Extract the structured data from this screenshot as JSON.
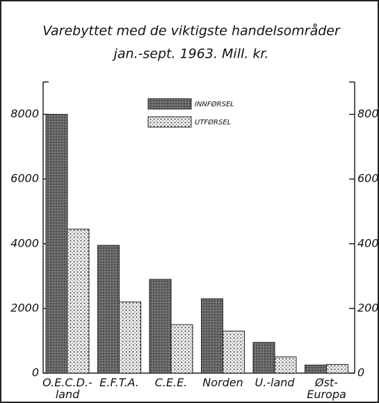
{
  "chart_data": {
    "type": "bar",
    "title": [
      "Varebyttet med de viktigste handelsområder",
      "jan.-sept. 1963. Mill. kr."
    ],
    "categories": [
      [
        "O.E.C.D.-",
        "land"
      ],
      [
        "E.F.T.A."
      ],
      [
        "C.E.E."
      ],
      [
        "Norden"
      ],
      [
        "U.-land"
      ],
      [
        "Øst-",
        "Europa"
      ]
    ],
    "series": [
      {
        "name": "INNFØRSEL",
        "color": "#6a6a6a",
        "values": [
          8000,
          3950,
          2900,
          2300,
          950,
          250
        ]
      },
      {
        "name": "UTFØRSEL",
        "color": "#e6e6e6",
        "values": [
          4450,
          2200,
          1500,
          1300,
          500,
          270
        ]
      }
    ],
    "ylim": [
      0,
      9000
    ],
    "yticks": [
      0,
      2000,
      4000,
      6000,
      8000
    ],
    "grid": false
  }
}
